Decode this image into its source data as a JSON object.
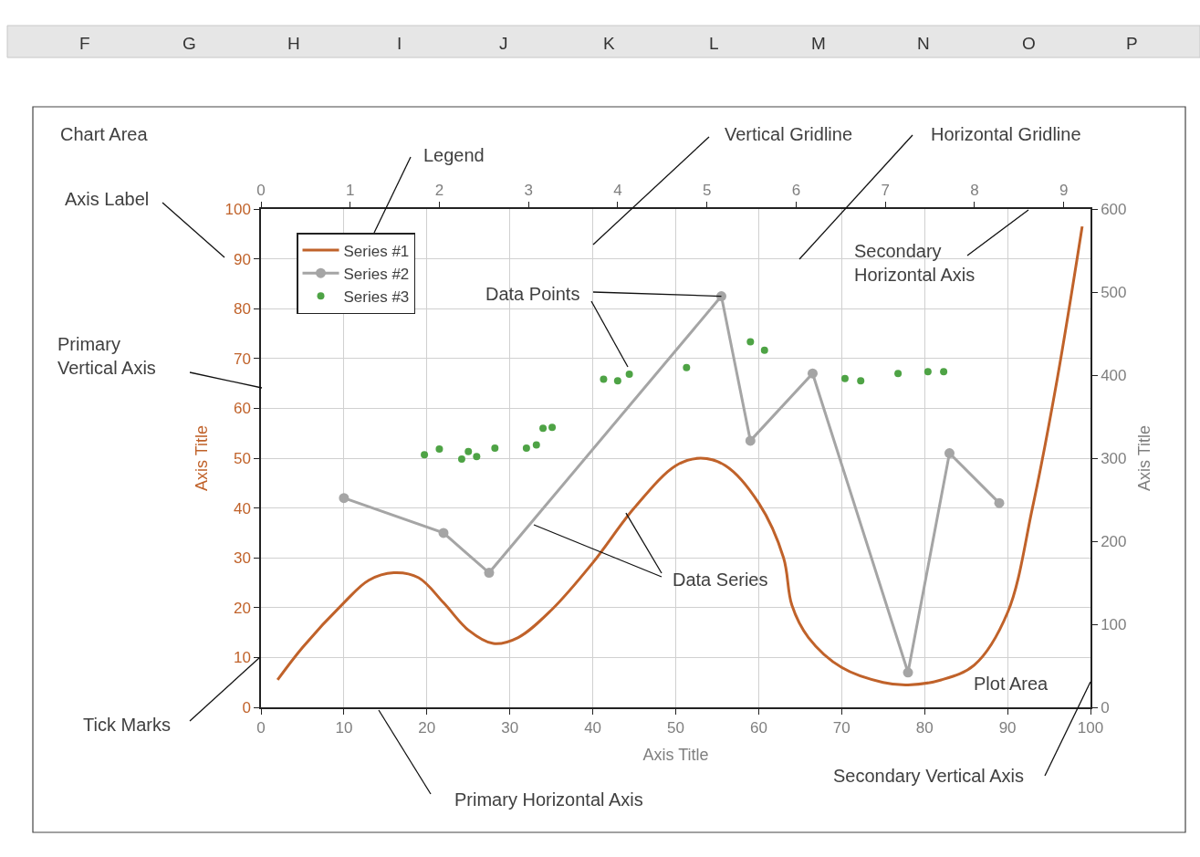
{
  "chart_data": {
    "type": "line",
    "xlabel": "Axis Title",
    "ylabel": "Axis Title",
    "y2label": "Axis Title",
    "xlim": [
      0,
      100
    ],
    "xticks": [
      0,
      10,
      20,
      30,
      40,
      50,
      60,
      70,
      80,
      90,
      100
    ],
    "ylim": [
      0,
      100
    ],
    "yticks": [
      0,
      10,
      20,
      30,
      40,
      50,
      60,
      70,
      80,
      90,
      100
    ],
    "x2lim": [
      0,
      9.3
    ],
    "x2ticks": [
      0,
      1,
      2,
      3,
      4,
      5,
      6,
      7,
      8,
      9
    ],
    "y2lim": [
      0,
      600
    ],
    "y2ticks": [
      0,
      100,
      200,
      300,
      400,
      500,
      600
    ],
    "grid": true,
    "legend": "top left",
    "series": [
      {
        "name": "Series #1",
        "color": "#c0622a",
        "marker": "none",
        "x": [
          2,
          5,
          10,
          13,
          16,
          19,
          22,
          25,
          28,
          31,
          35,
          40,
          45,
          50,
          53,
          56,
          60,
          63,
          64,
          66,
          70,
          75,
          78,
          82,
          86,
          90,
          93,
          96,
          99
        ],
        "values": [
          5.5,
          12,
          21,
          25.5,
          27,
          26,
          21,
          15.5,
          12.8,
          14,
          19.5,
          29,
          40,
          48.5,
          50,
          48.5,
          41,
          30,
          20.5,
          14,
          8,
          5,
          4.5,
          5.5,
          8.5,
          19,
          40,
          66,
          96.5
        ]
      },
      {
        "name": "Series #2",
        "color": "#a5a5a5",
        "marker": "circle",
        "x": [
          10,
          22,
          27.5,
          55.5,
          59,
          66.5,
          78,
          83,
          89
        ],
        "values": [
          42,
          35,
          27,
          82.5,
          53.5,
          67,
          7,
          51,
          41
        ]
      },
      {
        "name": "Series #3",
        "color": "#4ea345",
        "type": "scatter",
        "marker": "circle",
        "axis": "y2",
        "x": [
          19.7,
          21.5,
          24.2,
          25,
          26,
          28.2,
          32,
          33.2,
          34,
          35.1,
          41.3,
          43,
          44.4,
          51.3,
          59,
          60.7,
          70.4,
          72.3,
          76.8,
          80.4,
          82.3
        ],
        "values": [
          304,
          311,
          299,
          308,
          302,
          312,
          312,
          316,
          336,
          337,
          395,
          393,
          401,
          409,
          440,
          430,
          396,
          393,
          402,
          404,
          404
        ]
      }
    ],
    "annotations": [
      "Chart Area",
      "Legend",
      "Vertical Gridline",
      "Horizontal Gridline",
      "Axis Label",
      "Secondary\nHorizontal Axis",
      {
        "text": "Data Points",
        "x": 55.5,
        "y": 82.5
      },
      "Primary\nVertical Axis",
      {
        "text": "Data Series",
        "x": 44,
        "y": 39
      },
      "Plot Area",
      "Tick Marks",
      "Primary Horizontal Axis",
      "Secondary Vertical Axis",
      "F",
      "G",
      "H",
      "I",
      "J",
      "K",
      "L",
      "M",
      "N",
      "O",
      "P"
    ]
  }
}
